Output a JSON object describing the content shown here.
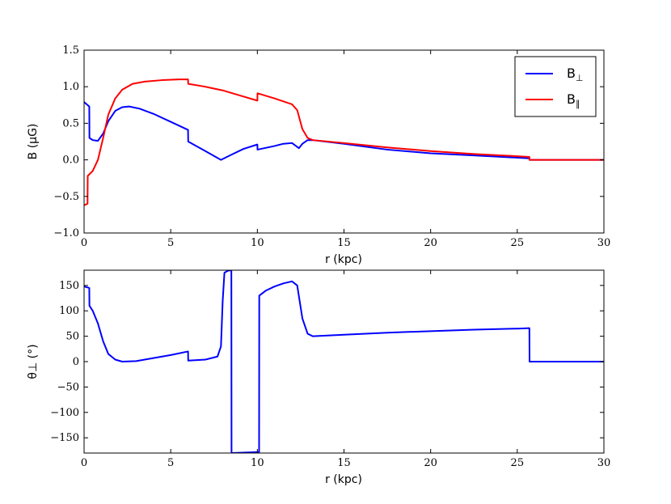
{
  "chart_data": [
    {
      "type": "line",
      "title": "",
      "xlabel": "r (kpc)",
      "ylabel": "B (μG)",
      "xlim": [
        0,
        30
      ],
      "ylim": [
        -1.0,
        1.5
      ],
      "xticks": [
        0,
        5,
        10,
        15,
        20,
        25,
        30
      ],
      "yticks": [
        -1.0,
        -0.5,
        0.0,
        0.5,
        1.0,
        1.5
      ],
      "xtick_labels": [
        "0",
        "5",
        "10",
        "15",
        "20",
        "25",
        "30"
      ],
      "ytick_labels": [
        "−1.0",
        "−0.5",
        "0.0",
        "0.5",
        "1.0",
        "1.5"
      ],
      "grid": false,
      "legend": "top-right",
      "series": [
        {
          "name": "B⊥",
          "legend_main": "B",
          "legend_sub": "⊥",
          "color": "#0000ff",
          "x": [
            0,
            0.3,
            0.31,
            0.5,
            0.8,
            1.1,
            1.4,
            1.8,
            2.2,
            2.6,
            3.2,
            4,
            5,
            6,
            6.01,
            7,
            7.9,
            8.5,
            9.2,
            10,
            10.01,
            11,
            11.5,
            12,
            12.4,
            12.6,
            12.9,
            13.2,
            15,
            17.5,
            20,
            22.5,
            25,
            25.7,
            25.71,
            30
          ],
          "y": [
            0.79,
            0.73,
            0.3,
            0.27,
            0.26,
            0.36,
            0.53,
            0.67,
            0.72,
            0.73,
            0.7,
            0.63,
            0.52,
            0.41,
            0.25,
            0.12,
            0.0,
            0.07,
            0.15,
            0.21,
            0.14,
            0.19,
            0.22,
            0.23,
            0.16,
            0.22,
            0.27,
            0.27,
            0.22,
            0.14,
            0.09,
            0.06,
            0.03,
            0.02,
            0.0,
            0.0
          ]
        },
        {
          "name": "B∥",
          "legend_main": "B",
          "legend_sub": "∥",
          "color": "#ff0000",
          "x": [
            0,
            0.2,
            0.21,
            0.5,
            0.8,
            1.1,
            1.4,
            1.8,
            2.2,
            2.8,
            3.5,
            4.5,
            5.5,
            6,
            6.01,
            7,
            8,
            9,
            10,
            10.01,
            11,
            12,
            12.3,
            12.6,
            12.9,
            13.2,
            15,
            17.5,
            20,
            22.5,
            25,
            25.7,
            25.71,
            30
          ],
          "y": [
            -0.62,
            -0.6,
            -0.22,
            -0.15,
            0.0,
            0.3,
            0.62,
            0.84,
            0.96,
            1.04,
            1.07,
            1.09,
            1.1,
            1.1,
            1.04,
            1.0,
            0.95,
            0.88,
            0.81,
            0.91,
            0.84,
            0.76,
            0.68,
            0.42,
            0.3,
            0.27,
            0.23,
            0.17,
            0.12,
            0.08,
            0.05,
            0.04,
            0.0,
            0.0
          ]
        }
      ]
    },
    {
      "type": "line",
      "title": "",
      "xlabel": "r (kpc)",
      "ylabel": "θ⊥ (°)",
      "xlim": [
        0,
        30
      ],
      "ylim": [
        -180,
        180
      ],
      "xticks": [
        0,
        5,
        10,
        15,
        20,
        25,
        30
      ],
      "yticks": [
        -150,
        -100,
        -50,
        0,
        50,
        100,
        150
      ],
      "xtick_labels": [
        "0",
        "5",
        "10",
        "15",
        "20",
        "25",
        "30"
      ],
      "ytick_labels": [
        "−150",
        "−100",
        "−50",
        "0",
        "50",
        "100",
        "150"
      ],
      "grid": false,
      "legend": "none",
      "series": [
        {
          "color": "#0000ff",
          "x": [
            0,
            0.3,
            0.31,
            0.5,
            0.8,
            1.1,
            1.4,
            1.8,
            2.2,
            3,
            4,
            5,
            6,
            6.01,
            7,
            7.7,
            7.9,
            8.0,
            8.1,
            8.3,
            8.5,
            8.51,
            10.1,
            10.11,
            10.5,
            11,
            11.5,
            12,
            12.3,
            12.6,
            12.9,
            13.2,
            15,
            17.5,
            20,
            22.5,
            25,
            25.7,
            25.71,
            30
          ],
          "y": [
            148,
            145,
            110,
            100,
            75,
            40,
            15,
            4,
            0,
            1,
            7,
            13,
            20,
            2,
            4,
            10,
            30,
            120,
            175,
            179,
            180,
            -180,
            -178,
            130,
            140,
            148,
            154,
            158,
            150,
            85,
            55,
            50,
            53,
            57,
            60,
            63,
            65,
            66,
            0,
            0
          ]
        }
      ]
    }
  ]
}
